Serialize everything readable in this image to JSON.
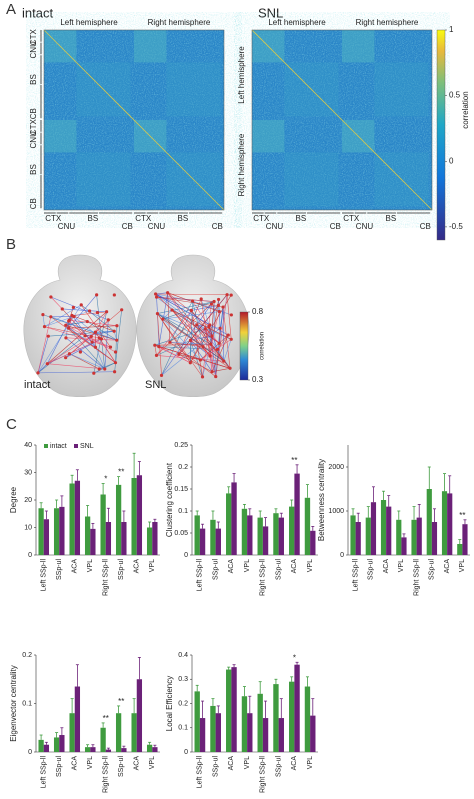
{
  "panel_a": {
    "label": "A",
    "maps": [
      {
        "title": "intact"
      },
      {
        "title": "SNL"
      }
    ],
    "hemispheres": [
      "Left hemisphere",
      "Right hemisphere"
    ],
    "regions": [
      "CTX",
      "CNU",
      "BS",
      "CB"
    ],
    "colorbar": {
      "lim": [
        -0.6,
        1
      ],
      "ticks": [
        1,
        0.5,
        0,
        -0.5
      ],
      "label": "correlation"
    }
  },
  "panel_b": {
    "label": "B",
    "brains": [
      "intact",
      "SNL"
    ],
    "colorbar": {
      "lim": [
        0.3,
        0.8
      ],
      "ticks": [
        0.8,
        0.3
      ],
      "label": "correlation"
    }
  },
  "panel_c": {
    "label": "C"
  },
  "chart_data": [
    {
      "type": "bar",
      "y_label": "Degree",
      "categories": [
        "Left SSp-ll",
        "SSp-ul",
        "ACA",
        "VPL",
        "Right SSp-ll",
        "SSp-ul",
        "ACA",
        "VPL"
      ],
      "ylim": [
        0,
        40
      ],
      "yticks": [
        0,
        10,
        20,
        30,
        40
      ],
      "legend": true,
      "series": [
        {
          "name": "intact",
          "color": "#3f9b3f",
          "values": [
            17,
            17,
            26,
            14,
            22,
            25.5,
            28,
            10
          ],
          "errors": [
            2,
            3,
            3,
            4,
            4,
            3,
            9,
            2
          ]
        },
        {
          "name": "SNL",
          "color": "#6b2178",
          "values": [
            13,
            17.5,
            27,
            9.5,
            12,
            12,
            29,
            12
          ],
          "errors": [
            3,
            4,
            4,
            2,
            5,
            4,
            5,
            1
          ]
        }
      ],
      "significance": [
        null,
        null,
        null,
        null,
        "*",
        "**",
        null,
        null
      ]
    },
    {
      "type": "bar",
      "y_label": "Clustering coefficient",
      "categories": [
        "Left SSp-ll",
        "SSp-ul",
        "ACA",
        "VPL",
        "Right SSp-ll",
        "SSp-ul",
        "ACA",
        "VPL"
      ],
      "ylim": [
        0,
        0.25
      ],
      "yticks": [
        0,
        0.05,
        0.1,
        0.15,
        0.2,
        0.25
      ],
      "legend": false,
      "series": [
        {
          "name": "intact",
          "color": "#3f9b3f",
          "values": [
            0.09,
            0.08,
            0.14,
            0.105,
            0.085,
            0.095,
            0.11,
            0.13
          ],
          "errors": [
            0.01,
            0.02,
            0.015,
            0.01,
            0.015,
            0.01,
            0.015,
            0.03
          ]
        },
        {
          "name": "SNL",
          "color": "#6b2178",
          "values": [
            0.06,
            0.06,
            0.165,
            0.09,
            0.065,
            0.085,
            0.185,
            0.055
          ],
          "errors": [
            0.01,
            0.015,
            0.02,
            0.015,
            0.02,
            0.01,
            0.02,
            0.01
          ]
        }
      ],
      "significance": [
        null,
        null,
        null,
        null,
        null,
        null,
        "**",
        null
      ]
    },
    {
      "type": "bar",
      "y_label": "Betweenness centrality",
      "categories": [
        "Left SSp-ll",
        "SSp-ul",
        "ACA",
        "VPL",
        "Right SSp-ll",
        "SSp-ul",
        "ACA",
        "VPL"
      ],
      "ylim": [
        0,
        2500
      ],
      "yticks": [
        0,
        1000,
        2000
      ],
      "legend": false,
      "series": [
        {
          "name": "intact",
          "color": "#3f9b3f",
          "values": [
            900,
            850,
            1250,
            800,
            800,
            1500,
            1450,
            250
          ],
          "errors": [
            150,
            250,
            200,
            200,
            300,
            500,
            400,
            100
          ]
        },
        {
          "name": "SNL",
          "color": "#6b2178",
          "values": [
            750,
            1200,
            1100,
            400,
            850,
            750,
            1400,
            700
          ],
          "errors": [
            200,
            350,
            250,
            80,
            300,
            300,
            400,
            100
          ]
        }
      ],
      "significance": [
        null,
        null,
        null,
        null,
        null,
        null,
        null,
        "**"
      ]
    },
    {
      "type": "bar",
      "y_label": "Eigenvector centrality",
      "categories": [
        "Left SSp-ll",
        "SSp-ul",
        "ACA",
        "VPL",
        "Right SSp-ll",
        "SSp-ul",
        "ACA",
        "VPL"
      ],
      "ylim": [
        0,
        0.2
      ],
      "yticks": [
        0,
        0.1,
        0.2
      ],
      "legend": false,
      "series": [
        {
          "name": "intact",
          "color": "#3f9b3f",
          "values": [
            0.025,
            0.03,
            0.08,
            0.01,
            0.05,
            0.08,
            0.08,
            0.015
          ],
          "errors": [
            0.01,
            0.01,
            0.03,
            0.005,
            0.01,
            0.015,
            0.03,
            0.005
          ]
        },
        {
          "name": "SNL",
          "color": "#6b2178",
          "values": [
            0.015,
            0.035,
            0.135,
            0.01,
            0.005,
            0.008,
            0.15,
            0.01
          ],
          "errors": [
            0.005,
            0.015,
            0.045,
            0.005,
            0.003,
            0.004,
            0.045,
            0.004
          ]
        }
      ],
      "significance": [
        null,
        null,
        null,
        null,
        "**",
        "**",
        null,
        null
      ]
    },
    {
      "type": "bar",
      "y_label": "Local Efficiency",
      "categories": [
        "Left SSp-ll",
        "SSp-ul",
        "ACA",
        "VPL",
        "Right SSp-ll",
        "SSp-ul",
        "ACA",
        "VPL"
      ],
      "ylim": [
        0,
        0.4
      ],
      "yticks": [
        0,
        0.1,
        0.2,
        0.3,
        0.4
      ],
      "legend": false,
      "series": [
        {
          "name": "intact",
          "color": "#3f9b3f",
          "values": [
            0.25,
            0.19,
            0.34,
            0.23,
            0.24,
            0.28,
            0.29,
            0.27
          ],
          "errors": [
            0.025,
            0.03,
            0.01,
            0.04,
            0.05,
            0.02,
            0.02,
            0.04
          ]
        },
        {
          "name": "SNL",
          "color": "#6b2178",
          "values": [
            0.14,
            0.16,
            0.35,
            0.16,
            0.14,
            0.14,
            0.36,
            0.15
          ],
          "errors": [
            0.07,
            0.03,
            0.01,
            0.07,
            0.07,
            0.08,
            0.01,
            0.07
          ]
        }
      ],
      "significance": [
        null,
        null,
        null,
        null,
        null,
        null,
        "*",
        null
      ]
    }
  ]
}
